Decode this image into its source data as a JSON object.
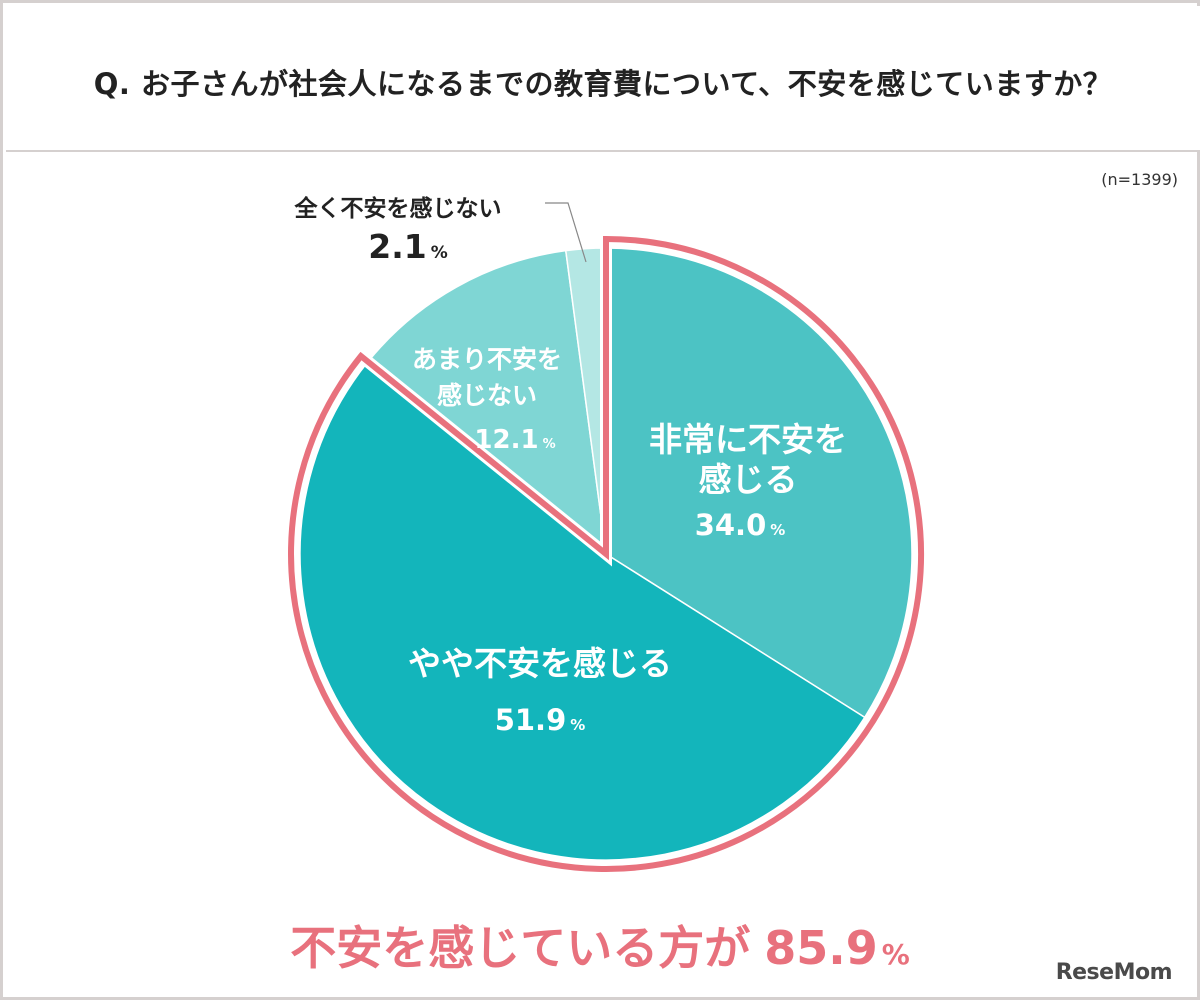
{
  "header": {
    "question": "Q. お子さんが社会人になるまでの教育費について、不安を感じていますか？"
  },
  "sample_size": "(n=1399)",
  "chart_data": {
    "type": "pie",
    "unit": "%",
    "slices": [
      {
        "label": "非常に不安を感じる",
        "label_lines": [
          "非常に不安を",
          "感じる"
        ],
        "value": 34.0,
        "value_text": "34.0",
        "color": "#4cc3c4",
        "highlight": true
      },
      {
        "label": "やや不安を感じる",
        "label_lines": [
          "やや不安を感じる"
        ],
        "value": 51.9,
        "value_text": "51.9",
        "color": "#13b5bb",
        "highlight": true
      },
      {
        "label": "あまり不安を感じない",
        "label_lines": [
          "あまり不安を",
          "感じない"
        ],
        "value": 12.1,
        "value_text": "12.1",
        "color": "#7fd6d4",
        "highlight": false
      },
      {
        "label": "全く不安を感じない",
        "label_lines": [
          "全く不安を感じない"
        ],
        "value": 2.1,
        "value_text": "2.1",
        "color": "#b4e7e4",
        "highlight": false
      }
    ],
    "highlight_color": "#e8717d"
  },
  "summary": {
    "text": "不安を感じている方が",
    "value": "85.9",
    "unit": "%"
  },
  "logo": "ReseMom"
}
